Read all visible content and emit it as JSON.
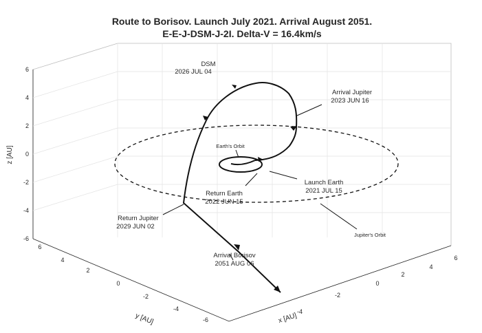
{
  "chart_data": {
    "type": "line",
    "projection": "3d",
    "title": [
      "Route to Borisov. Launch July 2021. Arrival August 2051.",
      "E-E-J-DSM-J-2I. Delta-V = 16.4km/s"
    ],
    "xlabel": "x [AU]",
    "ylabel": "y [AU]",
    "zlabel": "z [AU]",
    "xlim": [
      -6,
      6
    ],
    "ylim": [
      -6,
      6
    ],
    "zlim": [
      -6,
      6
    ],
    "xticks": [
      "-4",
      "-2",
      "0",
      "2",
      "4",
      "6"
    ],
    "yticks": [
      "-6",
      "-4",
      "-2",
      "0",
      "2",
      "4",
      "6"
    ],
    "zticks": [
      "-6",
      "-4",
      "-2",
      "0",
      "2",
      "4",
      "6"
    ],
    "grid": true,
    "series": [
      {
        "style": "solid",
        "color": "#000000",
        "points": [
          [
            -0.2,
            -0.8,
            0
          ],
          [
            -0.6,
            -0.5,
            0
          ],
          [
            -1.0,
            0.0,
            0
          ],
          [
            -1.0,
            0.5,
            0
          ],
          [
            -0.6,
            1.0,
            0
          ],
          [
            0.0,
            1.0,
            0
          ],
          [
            0.6,
            0.6,
            0
          ],
          [
            0.9,
            0.0,
            0
          ],
          [
            0.6,
            -0.6,
            0
          ],
          [
            0.0,
            -1.0,
            0
          ],
          [
            -0.5,
            -0.9,
            0
          ],
          [
            -0.8,
            -0.6,
            0
          ],
          [
            -0.6,
            -0.1,
            0
          ],
          [
            0.5,
            -1.2,
            0.2
          ],
          [
            2.0,
            -1.8,
            0.7
          ],
          [
            3.2,
            -2.1,
            1.4
          ],
          [
            3.9,
            -2.0,
            2.3
          ],
          [
            4.2,
            -1.6,
            3.4
          ],
          [
            4.1,
            -0.9,
            4.6
          ],
          [
            3.6,
            -0.1,
            5.5
          ],
          [
            2.6,
            0.6,
            6.0
          ],
          [
            1.4,
            1.2,
            6.1
          ],
          [
            0.1,
            1.6,
            5.8
          ],
          [
            -0.9,
            2.0,
            5.1
          ],
          [
            -1.8,
            2.3,
            4.0
          ],
          [
            -2.5,
            2.7,
            2.6
          ],
          [
            -3.2,
            3.1,
            0.8
          ],
          [
            -3.9,
            3.6,
            -1.4
          ],
          [
            -4.4,
            4.0,
            -3.2
          ],
          [
            -3.4,
            3.0,
            -4.3
          ],
          [
            -2.2,
            1.8,
            -5.5
          ],
          [
            -1.0,
            0.8,
            -6.8
          ],
          [
            0.2,
            -0.4,
            -8.0
          ]
        ]
      }
    ],
    "orbits": [
      {
        "name": "Earth's Orbit",
        "radius": 1.0,
        "style": "solid"
      },
      {
        "name": "Jupiter's Orbit",
        "radius": 5.2,
        "style": "dashed"
      }
    ],
    "annotations": [
      {
        "lines": [
          "DSM",
          "2026 JUL 04"
        ]
      },
      {
        "lines": [
          "Arrival Jupiter",
          "2023 JUN 16"
        ]
      },
      {
        "lines": [
          "Earth's Orbit"
        ]
      },
      {
        "lines": [
          "Return Earth",
          "2022 JUN 15"
        ]
      },
      {
        "lines": [
          "Launch Earth",
          "2021 JUL 15"
        ]
      },
      {
        "lines": [
          "Return Jupiter",
          "2029 JUN 02"
        ]
      },
      {
        "lines": [
          "Jupiter's Orbit"
        ]
      },
      {
        "lines": [
          "Arrival Borisov",
          "2051 AUG 06"
        ]
      }
    ]
  }
}
